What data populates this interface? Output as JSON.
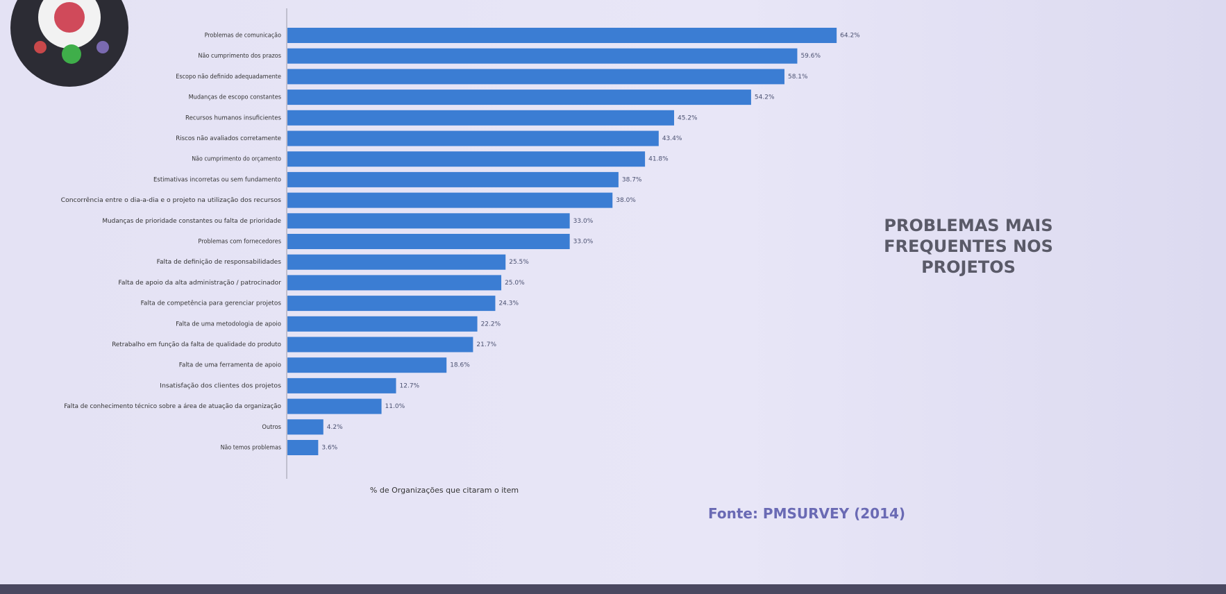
{
  "chart_data": {
    "type": "barh",
    "title": "PROBLEMAS MAIS FREQUENTES NOS PROJETOS",
    "xlabel": "% de Organizações que citaram o item",
    "source": "Fonte: PMSURVEY (2014)",
    "categories": [
      "Problemas de comunicação",
      "Não cumprimento dos prazos",
      "Escopo não definido adequadamente",
      "Mudanças de escopo constantes",
      "Recursos humanos insuficientes",
      "Riscos não avaliados corretamente",
      "Não cumprimento do orçamento",
      "Estimativas incorretas ou sem fundamento",
      "Concorrência entre o dia-a-dia e o projeto na utilização dos recursos",
      "Mudanças de prioridade constantes ou falta de prioridade",
      "Problemas com fornecedores",
      "Falta de definição de responsabilidades",
      "Falta de apoio da alta administração / patrocinador",
      "Falta de competência para gerenciar projetos",
      "Falta de uma metodologia de apoio",
      "Retrabalho em função da falta de qualidade do produto",
      "Falta de uma ferramenta de apoio",
      "Insatisfação dos clientes dos projetos",
      "Falta de conhecimento técnico sobre a área de atuação da organização",
      "Outros",
      "Não temos problemas"
    ],
    "values": [
      64.2,
      59.6,
      58.1,
      54.2,
      45.2,
      43.4,
      41.8,
      38.7,
      38.0,
      33.0,
      33.0,
      25.5,
      25.0,
      24.3,
      22.2,
      21.7,
      18.6,
      12.7,
      11.0,
      4.2,
      3.6
    ],
    "value_labels": [
      "64.2%",
      "59.6%",
      "58.1%",
      "54.2%",
      "45.2%",
      "43.4%",
      "41.8%",
      "38.7%",
      "38.0%",
      "33.0%",
      "33.0%",
      "25.5%",
      "25.0%",
      "24.3%",
      "22.2%",
      "21.7%",
      "18.6%",
      "12.7%",
      "11.0%",
      "4.2%",
      "3.6%"
    ],
    "color": "#3b7dd3",
    "xlim": [
      0,
      65
    ]
  }
}
